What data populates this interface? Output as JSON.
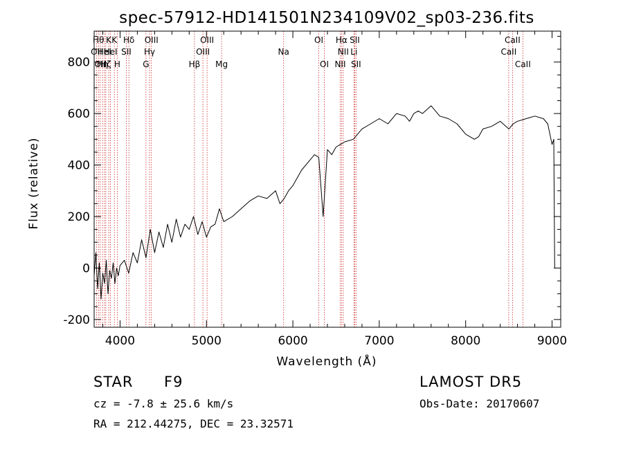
{
  "chart_data": {
    "type": "line",
    "title": "spec-57912-HD141501N234109V02_sp03-236.fits",
    "xlabel": "Wavelength (Å)",
    "ylabel": "Flux (relative)",
    "xlim": [
      3700,
      9100
    ],
    "ylim": [
      -230,
      920
    ],
    "xticks": [
      4000,
      5000,
      6000,
      7000,
      8000,
      9000
    ],
    "yticks": [
      -200,
      0,
      200,
      400,
      600,
      800
    ],
    "grid": false,
    "line_color": "#000000",
    "marker_color": "#cc2222",
    "series": [
      {
        "x": [
          3700,
          3720,
          3740,
          3760,
          3780,
          3800,
          3820,
          3840,
          3860,
          3880,
          3900,
          3920,
          3940,
          3960,
          3980,
          4000,
          4050,
          4100,
          4150,
          4200,
          4250,
          4300,
          4350,
          4400,
          4450,
          4500,
          4550,
          4600,
          4650,
          4700,
          4750,
          4800,
          4850,
          4900,
          4950,
          5000,
          5050,
          5100,
          5150,
          5200,
          5300,
          5400,
          5500,
          5600,
          5700,
          5800,
          5850,
          5900,
          5950,
          6000,
          6100,
          6200,
          6250,
          6300,
          6350,
          6400,
          6450,
          6500,
          6550,
          6600,
          6700,
          6800,
          6900,
          7000,
          7100,
          7200,
          7300,
          7350,
          7400,
          7450,
          7500,
          7600,
          7700,
          7800,
          7900,
          8000,
          8100,
          8150,
          8200,
          8300,
          8400,
          8500,
          8550,
          8600,
          8700,
          8800,
          8900,
          8950,
          9000,
          9020,
          9030
        ],
        "y": [
          -30,
          60,
          -80,
          20,
          -120,
          -20,
          -60,
          30,
          -100,
          -10,
          -40,
          20,
          -60,
          0,
          -30,
          10,
          30,
          -20,
          60,
          20,
          110,
          40,
          150,
          60,
          140,
          80,
          170,
          100,
          190,
          120,
          170,
          150,
          200,
          130,
          180,
          120,
          160,
          170,
          230,
          180,
          200,
          230,
          260,
          280,
          270,
          300,
          250,
          270,
          300,
          320,
          380,
          420,
          440,
          430,
          200,
          460,
          440,
          470,
          480,
          490,
          500,
          540,
          560,
          580,
          560,
          600,
          590,
          570,
          600,
          610,
          600,
          630,
          590,
          580,
          560,
          520,
          500,
          510,
          540,
          550,
          570,
          540,
          560,
          570,
          580,
          590,
          580,
          560,
          480,
          500,
          0
        ]
      }
    ],
    "line_markers": [
      {
        "x": 3727,
        "label": "OII",
        "row": 2
      },
      {
        "x": 3750,
        "label": "Hθ",
        "row": 1
      },
      {
        "x": 3770,
        "label": "OII",
        "row": 3
      },
      {
        "x": 3797,
        "label": "Hη",
        "row": 3
      },
      {
        "x": 3820,
        "label": "HeI",
        "row": 2
      },
      {
        "x": 3835,
        "label": "Hζ",
        "row": 3
      },
      {
        "x": 3869,
        "label": "K",
        "row": 1
      },
      {
        "x": 3889,
        "label": "HeI",
        "row": 2
      },
      {
        "x": 3934,
        "label": "K",
        "row": 1
      },
      {
        "x": 3968,
        "label": "H",
        "row": 3
      },
      {
        "x": 4072,
        "label": "SII",
        "row": 2
      },
      {
        "x": 4102,
        "label": "Hδ",
        "row": 1
      },
      {
        "x": 4300,
        "label": "G",
        "row": 3
      },
      {
        "x": 4341,
        "label": "Hγ",
        "row": 2
      },
      {
        "x": 4363,
        "label": "OIII",
        "row": 1
      },
      {
        "x": 4861,
        "label": "Hβ",
        "row": 3
      },
      {
        "x": 4959,
        "label": "OIII",
        "row": 2
      },
      {
        "x": 5007,
        "label": "OIII",
        "row": 1
      },
      {
        "x": 5175,
        "label": "Mg",
        "row": 3
      },
      {
        "x": 5893,
        "label": "Na",
        "row": 2
      },
      {
        "x": 6300,
        "label": "OI",
        "row": 1
      },
      {
        "x": 6364,
        "label": "OI",
        "row": 3
      },
      {
        "x": 6548,
        "label": "NII",
        "row": 3
      },
      {
        "x": 6563,
        "label": "Hα",
        "row": 1
      },
      {
        "x": 6583,
        "label": "NII",
        "row": 2
      },
      {
        "x": 6707,
        "label": "Li",
        "row": 2
      },
      {
        "x": 6716,
        "label": "SII",
        "row": 1
      },
      {
        "x": 6731,
        "label": "SII",
        "row": 3
      },
      {
        "x": 8498,
        "label": "CaII",
        "row": 2
      },
      {
        "x": 8542,
        "label": "CaII",
        "row": 1
      },
      {
        "x": 8662,
        "label": "CaII",
        "row": 3
      }
    ]
  },
  "info": {
    "object_class": "STAR",
    "subclass": "F9",
    "survey": "LAMOST DR5",
    "cz": "cz = -7.8 ± 25.6 km/s",
    "obs_date": "Obs-Date: 20170607",
    "coords": "RA = 212.44275, DEC =  23.32571"
  }
}
